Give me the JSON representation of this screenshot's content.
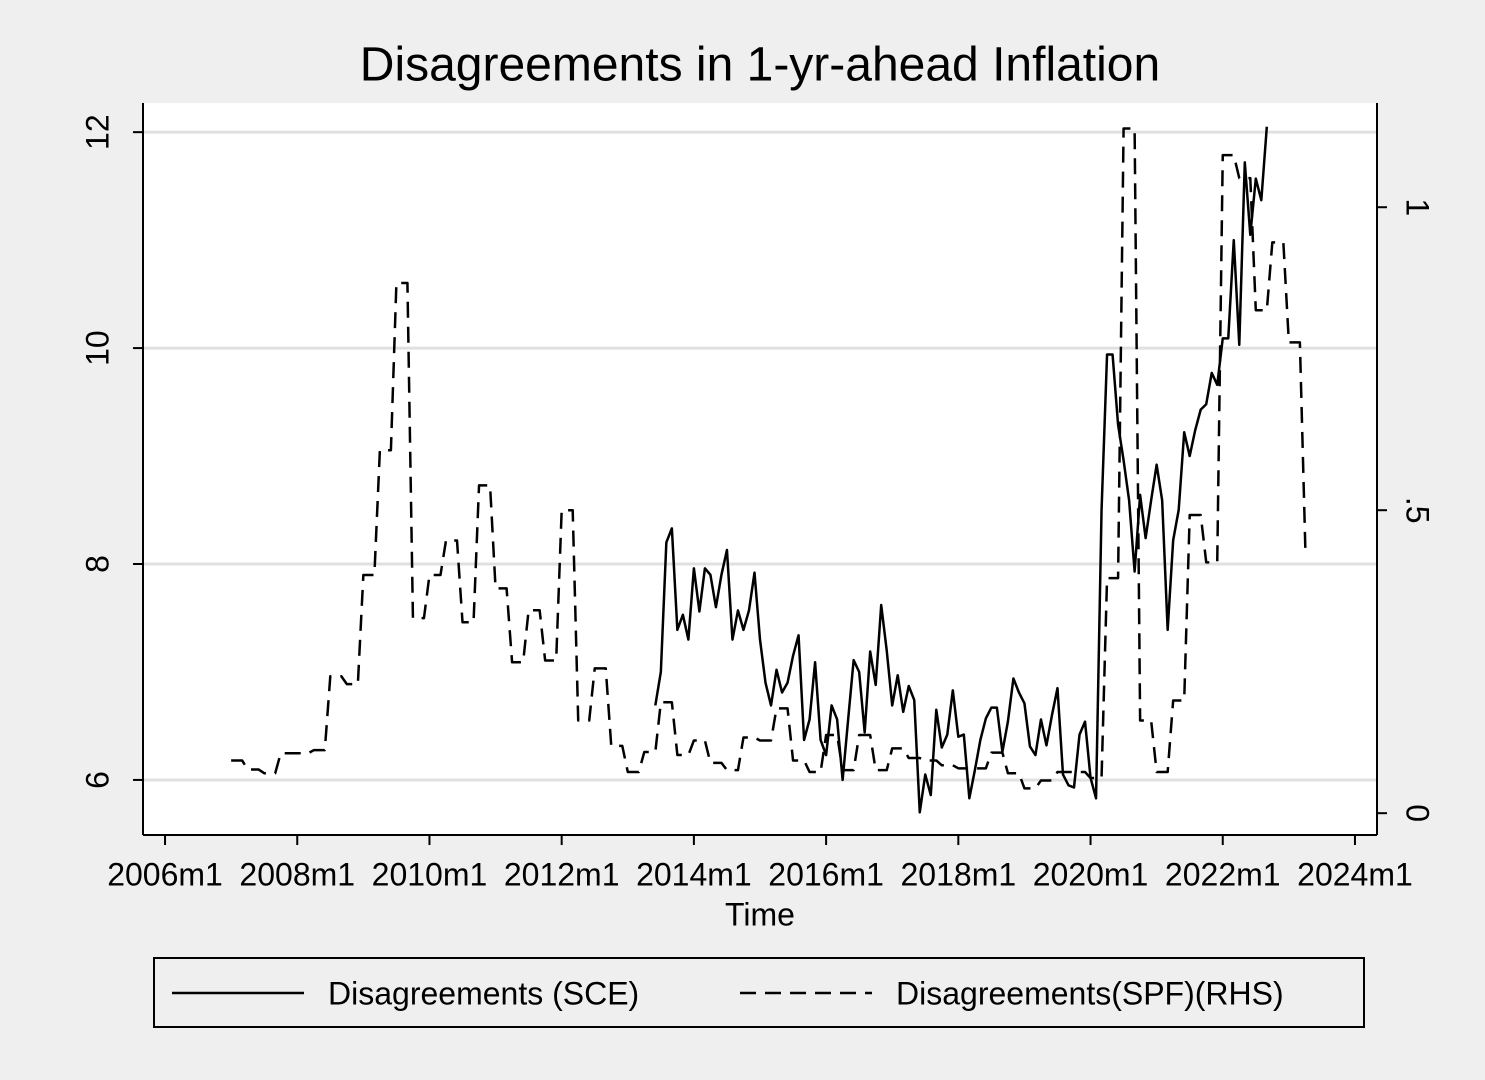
{
  "chart_data": {
    "type": "line",
    "title": "Disagreements in 1-yr-ahead Inflation",
    "xlabel": "Time",
    "xlim": [
      "2005m9",
      "2024m5"
    ],
    "xticks": [
      "2006m1",
      "2008m1",
      "2010m1",
      "2012m1",
      "2014m1",
      "2016m1",
      "2018m1",
      "2020m1",
      "2022m1",
      "2024m1"
    ],
    "ylim": [
      5.49,
      12.27
    ],
    "yticks": [
      6,
      8,
      10,
      12
    ],
    "y2lim": [
      -0.036,
      1.172
    ],
    "y2ticks": [
      0,
      {
        "value": 0.5,
        "label": ".5"
      },
      1
    ],
    "grid": true,
    "x": [
      "2007m1",
      "2007m2",
      "2007m3",
      "2007m4",
      "2007m5",
      "2007m6",
      "2007m7",
      "2007m8",
      "2007m9",
      "2007m10",
      "2007m11",
      "2007m12",
      "2008m1",
      "2008m2",
      "2008m3",
      "2008m4",
      "2008m5",
      "2008m6",
      "2008m7",
      "2008m8",
      "2008m9",
      "2008m10",
      "2008m11",
      "2008m12",
      "2009m1",
      "2009m2",
      "2009m3",
      "2009m4",
      "2009m5",
      "2009m6",
      "2009m7",
      "2009m8",
      "2009m9",
      "2009m10",
      "2009m11",
      "2009m12",
      "2010m1",
      "2010m2",
      "2010m3",
      "2010m4",
      "2010m5",
      "2010m6",
      "2010m7",
      "2010m8",
      "2010m9",
      "2010m10",
      "2010m11",
      "2010m12",
      "2011m1",
      "2011m2",
      "2011m3",
      "2011m4",
      "2011m5",
      "2011m6",
      "2011m7",
      "2011m8",
      "2011m9",
      "2011m10",
      "2011m11",
      "2011m12",
      "2012m1",
      "2012m2",
      "2012m3",
      "2012m4",
      "2012m5",
      "2012m6",
      "2012m7",
      "2012m8",
      "2012m9",
      "2012m10",
      "2012m11",
      "2012m12",
      "2013m1",
      "2013m2",
      "2013m3",
      "2013m4",
      "2013m5",
      "2013m6",
      "2013m7",
      "2013m8",
      "2013m9",
      "2013m10",
      "2013m11",
      "2013m12",
      "2014m1",
      "2014m2",
      "2014m3",
      "2014m4",
      "2014m5",
      "2014m6",
      "2014m7",
      "2014m8",
      "2014m9",
      "2014m10",
      "2014m11",
      "2014m12",
      "2015m1",
      "2015m2",
      "2015m3",
      "2015m4",
      "2015m5",
      "2015m6",
      "2015m7",
      "2015m8",
      "2015m9",
      "2015m10",
      "2015m11",
      "2015m12",
      "2016m1",
      "2016m2",
      "2016m3",
      "2016m4",
      "2016m5",
      "2016m6",
      "2016m7",
      "2016m8",
      "2016m9",
      "2016m10",
      "2016m11",
      "2016m12",
      "2017m1",
      "2017m2",
      "2017m3",
      "2017m4",
      "2017m5",
      "2017m6",
      "2017m7",
      "2017m8",
      "2017m9",
      "2017m10",
      "2017m11",
      "2017m12",
      "2018m1",
      "2018m2",
      "2018m3",
      "2018m4",
      "2018m5",
      "2018m6",
      "2018m7",
      "2018m8",
      "2018m9",
      "2018m10",
      "2018m11",
      "2018m12",
      "2019m1",
      "2019m2",
      "2019m3",
      "2019m4",
      "2019m5",
      "2019m6",
      "2019m7",
      "2019m8",
      "2019m9",
      "2019m10",
      "2019m11",
      "2019m12",
      "2020m1",
      "2020m2",
      "2020m3",
      "2020m4",
      "2020m5",
      "2020m6",
      "2020m7",
      "2020m8",
      "2020m9",
      "2020m10",
      "2020m11",
      "2020m12",
      "2021m1",
      "2021m2",
      "2021m3",
      "2021m4",
      "2021m5",
      "2021m6",
      "2021m7",
      "2021m8",
      "2021m9",
      "2021m10",
      "2021m11",
      "2021m12",
      "2022m1",
      "2022m2",
      "2022m3",
      "2022m4",
      "2022m5",
      "2022m6",
      "2022m7",
      "2022m8",
      "2022m9",
      "2022m10",
      "2022m11",
      "2022m12",
      "2023m1",
      "2023m2",
      "2023m3",
      "2023m4"
    ],
    "series": [
      {
        "name": "Disagreements (SCE)",
        "color": "#000000",
        "line_style": "solid",
        "axis": "y",
        "values": [
          null,
          null,
          null,
          null,
          null,
          null,
          null,
          null,
          null,
          null,
          null,
          null,
          null,
          null,
          null,
          null,
          null,
          null,
          null,
          null,
          null,
          null,
          null,
          null,
          null,
          null,
          null,
          null,
          null,
          null,
          null,
          null,
          null,
          null,
          null,
          null,
          null,
          null,
          null,
          null,
          null,
          null,
          null,
          null,
          null,
          null,
          null,
          null,
          null,
          null,
          null,
          null,
          null,
          null,
          null,
          null,
          null,
          null,
          null,
          null,
          null,
          null,
          null,
          null,
          null,
          null,
          null,
          null,
          null,
          null,
          null,
          null,
          null,
          null,
          null,
          null,
          null,
          6.69,
          7.0,
          8.2,
          8.33,
          7.39,
          7.53,
          7.3,
          7.96,
          7.56,
          7.96,
          7.9,
          7.6,
          7.9,
          8.13,
          7.3,
          7.57,
          7.39,
          7.57,
          7.92,
          7.3,
          6.9,
          6.69,
          7.02,
          6.81,
          6.9,
          7.15,
          7.34,
          6.37,
          6.56,
          7.09,
          6.37,
          6.23,
          6.69,
          6.56,
          6.0,
          6.56,
          7.11,
          7.0,
          6.44,
          7.19,
          6.88,
          7.62,
          7.2,
          6.69,
          6.97,
          6.63,
          6.87,
          6.74,
          5.7,
          6.05,
          5.86,
          6.65,
          6.3,
          6.42,
          6.83,
          6.4,
          6.42,
          5.83,
          6.09,
          6.37,
          6.57,
          6.67,
          6.67,
          6.26,
          6.54,
          6.94,
          6.81,
          6.71,
          6.31,
          6.23,
          6.56,
          6.32,
          6.6,
          6.85,
          6.05,
          5.95,
          5.93,
          6.42,
          6.54,
          6.02,
          5.83,
          8.5,
          9.94,
          9.94,
          9.29,
          8.96,
          8.59,
          7.93,
          8.64,
          8.24,
          8.59,
          8.92,
          8.59,
          7.39,
          8.22,
          8.5,
          9.22,
          9.0,
          9.24,
          9.43,
          9.48,
          9.77,
          9.66,
          10.09,
          10.09,
          11.0,
          10.03,
          11.72,
          11.05,
          11.57,
          11.37,
          12.05,
          null,
          null,
          null,
          null,
          null,
          null,
          null
        ]
      },
      {
        "name": "Disagreements(SPF)(RHS)",
        "color": "#000000",
        "line_style": "dashed",
        "axis": "y2",
        "values": [
          0.087,
          0.087,
          0.087,
          0.072,
          0.072,
          0.072,
          0.066,
          0.066,
          0.066,
          0.099,
          0.099,
          0.099,
          0.099,
          0.099,
          0.099,
          0.104,
          0.104,
          0.104,
          0.226,
          0.226,
          0.226,
          0.213,
          0.213,
          0.213,
          0.393,
          0.393,
          0.393,
          0.599,
          0.599,
          0.599,
          0.875,
          0.875,
          0.875,
          0.322,
          0.322,
          0.322,
          0.393,
          0.393,
          0.393,
          0.45,
          0.45,
          0.45,
          0.315,
          0.315,
          0.315,
          0.541,
          0.541,
          0.541,
          0.371,
          0.371,
          0.371,
          0.249,
          0.249,
          0.249,
          0.335,
          0.335,
          0.335,
          0.252,
          0.252,
          0.252,
          0.5,
          0.5,
          0.5,
          0.153,
          0.153,
          0.153,
          0.239,
          0.239,
          0.239,
          0.111,
          0.111,
          0.111,
          0.068,
          0.068,
          0.068,
          0.101,
          0.101,
          0.101,
          0.183,
          0.183,
          0.183,
          0.096,
          0.096,
          0.096,
          0.12,
          0.12,
          0.12,
          0.083,
          0.083,
          0.083,
          0.071,
          0.071,
          0.071,
          0.125,
          0.125,
          0.125,
          0.12,
          0.12,
          0.12,
          0.173,
          0.173,
          0.173,
          0.087,
          0.087,
          0.087,
          0.068,
          0.068,
          0.068,
          0.129,
          0.129,
          0.129,
          0.071,
          0.071,
          0.071,
          0.129,
          0.129,
          0.129,
          0.071,
          0.071,
          0.071,
          0.107,
          0.107,
          0.107,
          0.091,
          0.091,
          0.091,
          0.087,
          0.087,
          0.087,
          0.079,
          0.079,
          0.079,
          0.074,
          0.074,
          0.074,
          0.074,
          0.074,
          0.074,
          0.1,
          0.1,
          0.1,
          0.066,
          0.066,
          0.066,
          0.041,
          0.041,
          0.041,
          0.054,
          0.054,
          0.054,
          0.068,
          0.068,
          0.068,
          0.068,
          0.068,
          0.068,
          0.058,
          0.058,
          0.058,
          0.388,
          0.388,
          0.388,
          1.13,
          1.13,
          1.13,
          0.153,
          0.153,
          0.153,
          0.068,
          0.068,
          0.068,
          0.186,
          0.186,
          0.186,
          0.492,
          0.492,
          0.492,
          0.414,
          0.414,
          0.414,
          1.086,
          1.086,
          1.086,
          1.048,
          1.048,
          1.048,
          0.83,
          0.83,
          0.83,
          0.942,
          0.942,
          0.942,
          0.777,
          0.777,
          0.777,
          0.434
        ]
      }
    ]
  }
}
